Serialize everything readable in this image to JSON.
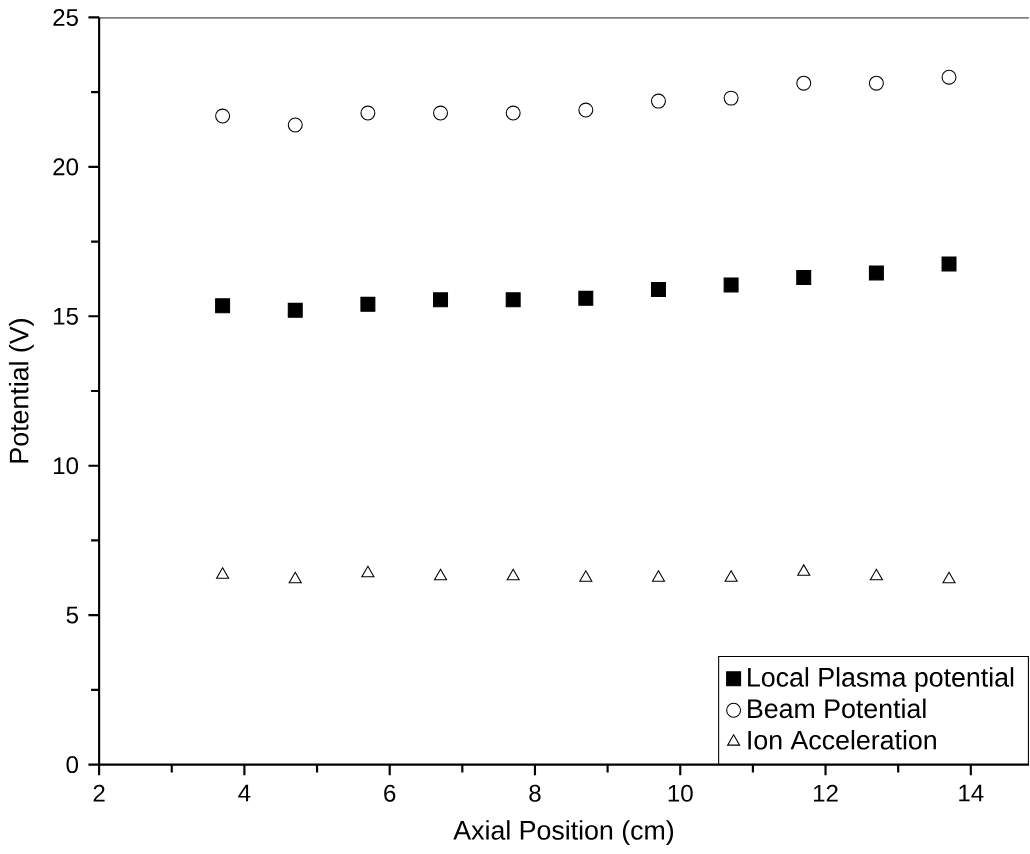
{
  "chart_data": {
    "type": "scatter",
    "xlabel": "Axial Position (cm)",
    "ylabel": "Potential (V)",
    "x": [
      3.7,
      4.7,
      5.7,
      6.7,
      7.7,
      8.7,
      9.7,
      10.7,
      11.7,
      12.7,
      13.7
    ],
    "series": [
      {
        "name": "Local Plasma potential",
        "color": "#000000",
        "marker": "square",
        "values": [
          15.35,
          15.2,
          15.4,
          15.55,
          15.55,
          15.6,
          15.9,
          16.05,
          16.3,
          16.45,
          16.75
        ]
      },
      {
        "name": "Beam Potential",
        "color": "#000000",
        "marker": "circle",
        "values": [
          21.7,
          21.4,
          21.8,
          21.8,
          21.8,
          21.9,
          22.2,
          22.3,
          22.8,
          22.8,
          23.0
        ]
      },
      {
        "name": "Ion Acceleration",
        "color": "#000000",
        "marker": "triangle",
        "values": [
          6.35,
          6.2,
          6.4,
          6.3,
          6.3,
          6.25,
          6.25,
          6.25,
          6.45,
          6.3,
          6.2
        ]
      }
    ],
    "xlim": [
      2,
      14.8
    ],
    "ylim": [
      0,
      25
    ],
    "xticks": [
      2,
      4,
      6,
      8,
      10,
      12,
      14
    ],
    "yticks": [
      0,
      5,
      10,
      15,
      20,
      25
    ],
    "grid": false,
    "legend": "bottom right"
  }
}
